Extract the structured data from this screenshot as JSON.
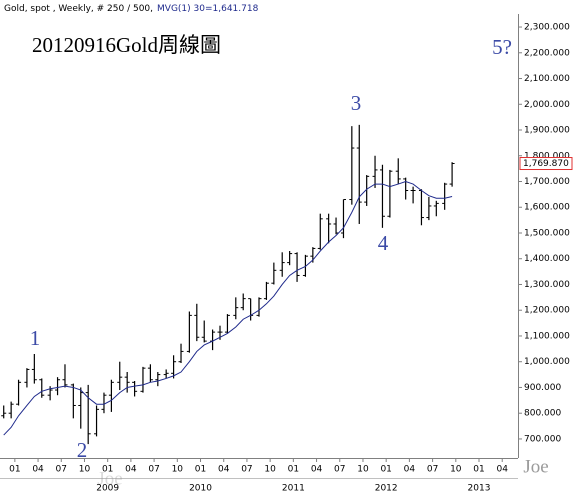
{
  "chart_data": {
    "type": "ohlc",
    "header": "Gold, spot , Weekly, # 250 / 500,",
    "title": "20120916Gold周線圖",
    "ohlc": {
      "color": "#000000",
      "x": [
        2007.88,
        2007.96,
        2008.04,
        2008.13,
        2008.21,
        2008.29,
        2008.38,
        2008.46,
        2008.54,
        2008.63,
        2008.71,
        2008.79,
        2008.88,
        2008.96,
        2009.04,
        2009.13,
        2009.21,
        2009.29,
        2009.38,
        2009.46,
        2009.54,
        2009.63,
        2009.71,
        2009.79,
        2009.88,
        2009.96,
        2010.04,
        2010.13,
        2010.21,
        2010.29,
        2010.38,
        2010.46,
        2010.54,
        2010.63,
        2010.71,
        2010.79,
        2010.88,
        2010.96,
        2011.04,
        2011.13,
        2011.21,
        2011.29,
        2011.38,
        2011.46,
        2011.54,
        2011.63,
        2011.71,
        2011.79,
        2011.88,
        2011.96,
        2012.04,
        2012.13,
        2012.21,
        2012.29,
        2012.38,
        2012.46,
        2012.54,
        2012.63,
        2012.71
      ],
      "open": [
        790,
        800,
        835,
        920,
        970,
        930,
        870,
        890,
        930,
        910,
        830,
        880,
        720,
        815,
        870,
        920,
        940,
        920,
        885,
        975,
        930,
        950,
        955,
        1000,
        1040,
        1180,
        1095,
        1080,
        1115,
        1115,
        1180,
        1210,
        1245,
        1180,
        1245,
        1305,
        1355,
        1385,
        1420,
        1335,
        1410,
        1440,
        1555,
        1535,
        1500,
        1630,
        1830,
        1620,
        1720,
        1745,
        1565,
        1740,
        1710,
        1665,
        1665,
        1560,
        1605,
        1615,
        1690
      ],
      "high": [
        830,
        845,
        930,
        975,
        1030,
        935,
        905,
        940,
        990,
        915,
        900,
        910,
        830,
        880,
        930,
        1000,
        960,
        925,
        980,
        990,
        960,
        970,
        1025,
        1070,
        1195,
        1225,
        1160,
        1125,
        1140,
        1185,
        1250,
        1265,
        1245,
        1250,
        1310,
        1385,
        1425,
        1430,
        1425,
        1415,
        1445,
        1575,
        1575,
        1560,
        1630,
        1915,
        1920,
        1725,
        1800,
        1765,
        1745,
        1790,
        1715,
        1680,
        1670,
        1640,
        1625,
        1695,
        1775
      ],
      "low": [
        780,
        780,
        830,
        900,
        915,
        860,
        850,
        870,
        900,
        780,
        740,
        680,
        710,
        800,
        805,
        890,
        880,
        865,
        880,
        920,
        905,
        935,
        935,
        995,
        1035,
        1080,
        1075,
        1045,
        1085,
        1110,
        1165,
        1200,
        1160,
        1175,
        1240,
        1300,
        1330,
        1375,
        1310,
        1330,
        1385,
        1435,
        1460,
        1495,
        1480,
        1610,
        1535,
        1605,
        1675,
        1520,
        1560,
        1690,
        1630,
        1615,
        1530,
        1550,
        1565,
        1590,
        1680
      ],
      "close": [
        800,
        835,
        920,
        970,
        930,
        870,
        890,
        930,
        910,
        830,
        880,
        720,
        815,
        870,
        920,
        940,
        920,
        885,
        975,
        930,
        950,
        955,
        1000,
        1040,
        1180,
        1095,
        1080,
        1115,
        1115,
        1180,
        1210,
        1245,
        1180,
        1245,
        1305,
        1355,
        1385,
        1420,
        1335,
        1410,
        1440,
        1555,
        1535,
        1500,
        1630,
        1830,
        1620,
        1720,
        1745,
        1565,
        1740,
        1710,
        1665,
        1665,
        1560,
        1605,
        1615,
        1690,
        1769.87
      ],
      "last_label": "1,769.870"
    },
    "ma": {
      "label": "MVG(1) 30=1,641.718",
      "color": "#1f2a8c",
      "values": [
        715,
        745,
        790,
        830,
        865,
        885,
        895,
        900,
        905,
        900,
        890,
        860,
        835,
        835,
        850,
        880,
        900,
        905,
        910,
        920,
        925,
        935,
        945,
        960,
        1000,
        1040,
        1065,
        1080,
        1095,
        1110,
        1135,
        1165,
        1180,
        1200,
        1225,
        1255,
        1300,
        1335,
        1355,
        1370,
        1395,
        1430,
        1465,
        1490,
        1520,
        1580,
        1640,
        1670,
        1690,
        1690,
        1680,
        1690,
        1700,
        1690,
        1665,
        1645,
        1635,
        1635,
        1641.718
      ]
    },
    "xlim": [
      2007.84,
      2013.42
    ],
    "xticks": [
      {
        "value": 2008.0,
        "label": "01"
      },
      {
        "value": 2008.25,
        "label": "04"
      },
      {
        "value": 2008.5,
        "label": "07"
      },
      {
        "value": 2008.75,
        "label": "10"
      },
      {
        "value": 2009.0,
        "label": "01"
      },
      {
        "value": 2009.25,
        "label": "04"
      },
      {
        "value": 2009.5,
        "label": "07"
      },
      {
        "value": 2009.75,
        "label": "10"
      },
      {
        "value": 2010.0,
        "label": "01"
      },
      {
        "value": 2010.25,
        "label": "04"
      },
      {
        "value": 2010.5,
        "label": "07"
      },
      {
        "value": 2010.75,
        "label": "10"
      },
      {
        "value": 2011.0,
        "label": "01"
      },
      {
        "value": 2011.25,
        "label": "04"
      },
      {
        "value": 2011.5,
        "label": "07"
      },
      {
        "value": 2011.75,
        "label": "10"
      },
      {
        "value": 2012.0,
        "label": "01"
      },
      {
        "value": 2012.25,
        "label": "04"
      },
      {
        "value": 2012.5,
        "label": "07"
      },
      {
        "value": 2012.75,
        "label": "10"
      },
      {
        "value": 2013.0,
        "label": "01"
      },
      {
        "value": 2013.25,
        "label": "04"
      }
    ],
    "year_ticks": [
      2009,
      2010,
      2011,
      2012,
      2013
    ],
    "ylim": [
      626,
      2405
    ],
    "yticks": [
      {
        "value": 700,
        "label": "700.000"
      },
      {
        "value": 800,
        "label": "800.000"
      },
      {
        "value": 900,
        "label": "900.000"
      },
      {
        "value": 1000,
        "label": "1,000.000"
      },
      {
        "value": 1100,
        "label": "1,100.000"
      },
      {
        "value": 1200,
        "label": "1,200.000"
      },
      {
        "value": 1300,
        "label": "1,300.000"
      },
      {
        "value": 1400,
        "label": "1,400.000"
      },
      {
        "value": 1500,
        "label": "1,500.000"
      },
      {
        "value": 1600,
        "label": "1,600.000"
      },
      {
        "value": 1700,
        "label": "1,700.000"
      },
      {
        "value": 1800,
        "label": "1,800.000"
      },
      {
        "value": 1900,
        "label": "1,900.000"
      },
      {
        "value": 2000,
        "label": "2,000.000"
      },
      {
        "value": 2100,
        "label": "2,100.000"
      },
      {
        "value": 2200,
        "label": "2,200.000"
      },
      {
        "value": 2300,
        "label": "2,300.000"
      }
    ],
    "annotations": [
      "1",
      "2",
      "3",
      "4",
      "5?"
    ],
    "watermarks": [
      "Joe",
      "Joe"
    ]
  }
}
